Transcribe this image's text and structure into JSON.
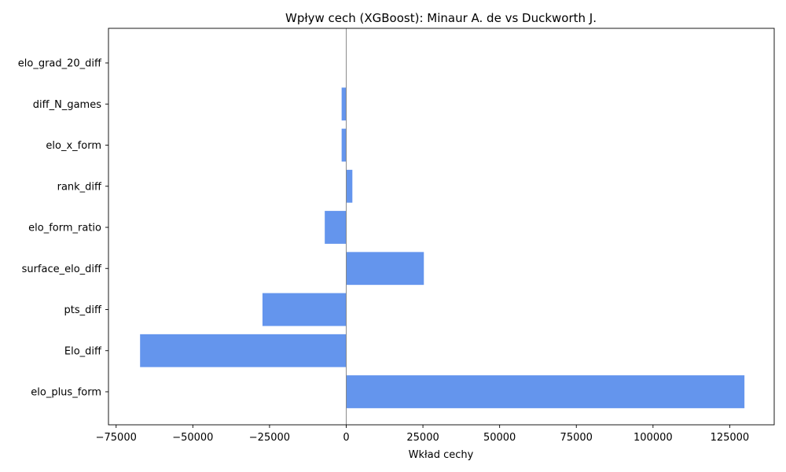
{
  "chart_data": {
    "type": "bar",
    "orientation": "horizontal",
    "title": "Wpływ cech (XGBoost): Minaur A. de vs Duckworth J.",
    "xlabel": "Wkład cechy",
    "ylabel": "",
    "categories": [
      "elo_grad_20_diff",
      "diff_N_games",
      "elo_x_form",
      "rank_diff",
      "elo_form_ratio",
      "surface_elo_diff",
      "pts_diff",
      "Elo_diff",
      "elo_plus_form"
    ],
    "values": [
      0,
      -1500,
      -1500,
      2000,
      -7000,
      25300,
      -27300,
      -67200,
      129800
    ],
    "xlim": [
      -77500,
      139500
    ],
    "xticks": [
      -75000,
      -50000,
      -25000,
      0,
      25000,
      50000,
      75000,
      100000,
      125000
    ],
    "xtick_labels": [
      "−75000",
      "−50000",
      "−25000",
      "0",
      "25000",
      "50000",
      "75000",
      "100000",
      "125000"
    ],
    "bar_color": "#6495ed",
    "zero_line": true,
    "grid": false
  }
}
